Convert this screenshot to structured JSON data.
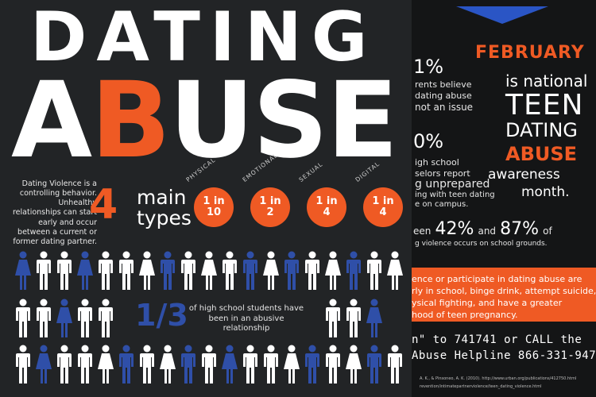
{
  "title": {
    "line1": "DATING",
    "line2_a": "A",
    "line2_b": "B",
    "line2_rest": "USE"
  },
  "definition": "Dating Violence is a controlling behavior. Unhealthy relationships can start early and occur between a current or former dating partner.",
  "types": {
    "number": "4",
    "word1": "main",
    "word2": "types"
  },
  "ratios": [
    {
      "label": "PHYSICAL",
      "line1": "1 in",
      "line2": "10"
    },
    {
      "label": "EMOTIONAL",
      "line1": "1 in",
      "line2": "2"
    },
    {
      "label": "SEXUAL",
      "line1": "1 in",
      "line2": "4"
    },
    {
      "label": "DIGITAL",
      "line1": "1 in",
      "line2": "4"
    }
  ],
  "fraction": {
    "value": "1/3",
    "caption": "of high school students have been in an abusive relationship"
  },
  "right": {
    "stat1_num": "1%",
    "stat1_l1": "rents believe",
    "stat1_l2": "dating abuse",
    "stat1_l3": "not an issue",
    "stat2_num": "0%",
    "stat2_l1": "igh school",
    "stat2_l2": "selors report",
    "stat2_l3": "g unprepared",
    "stat2_l4": "ing with teen dating",
    "stat2_l5": "e on campus.",
    "stat3_pre": "een",
    "stat3_a": "42%",
    "stat3_and": "and",
    "stat3_b": "87%",
    "stat3_of": "of",
    "stat3_l2": "g violence occurs on school grounds.",
    "feb": "FEBRUARY",
    "national": "is national",
    "teen": "TEEN",
    "dating": "DATING",
    "abuse": "ABUSE",
    "awareness": "awareness",
    "month": "month.",
    "box_l1": "ence or participate in dating abuse are",
    "box_l2": "rly in school, binge drink, attempt suicide,",
    "box_l3": "ysical fighting, and have a greater",
    "box_l4": "hood of teen pregnancy.",
    "hot1": "n\" to 741741 or CALL the",
    "hot2": "Abuse Helpline 866-331-9474",
    "src1": "A. K., & Pinsoneo, A. K. (2010).  http://www.urban.org/publications/412750.html",
    "src2": "revention/intimatepartnerviolence/teen_dating_violence.html"
  },
  "colors": {
    "accent": "#ef5a24",
    "blue": "#2f4fa8",
    "white": "#ffffff",
    "background": "#222426"
  },
  "people_rows": [
    [
      "blue",
      "white",
      "white",
      "blue",
      "white",
      "white",
      "white",
      "blue",
      "white",
      "white",
      "white",
      "blue",
      "white",
      "blue",
      "white",
      "white",
      "blue",
      "white",
      "white"
    ],
    [
      "white",
      "white",
      "blue",
      "white",
      "white",
      "blue",
      "white",
      "white",
      "white",
      "white",
      "blue",
      "white",
      "white",
      "blue",
      "white",
      "white",
      "white",
      "blue"
    ],
    [
      "white",
      "blue",
      "white",
      "white",
      "white",
      "blue",
      "white",
      "white",
      "blue",
      "white",
      "blue",
      "white",
      "white",
      "white",
      "blue",
      "white",
      "white",
      "blue",
      "white"
    ]
  ]
}
